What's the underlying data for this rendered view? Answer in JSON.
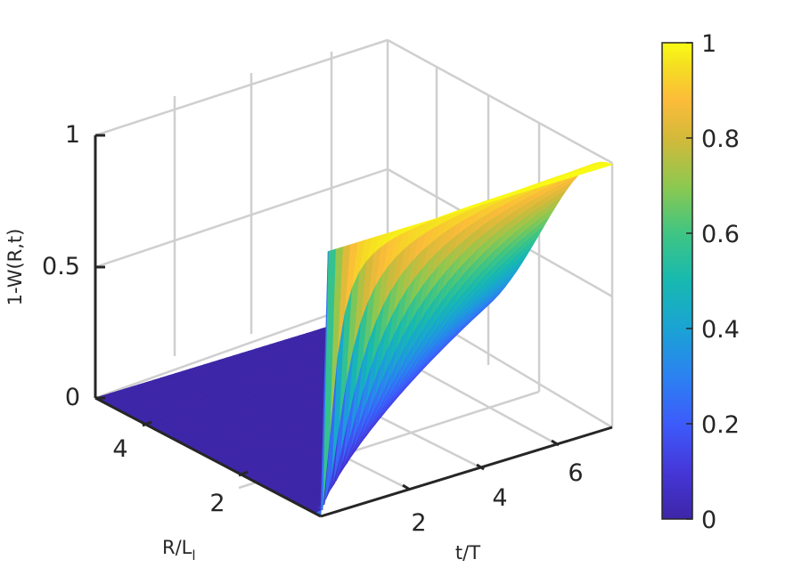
{
  "chart_data": {
    "type": "surface",
    "title": "",
    "xlabel": "t/T",
    "ylabel_main": "R/L",
    "ylabel_sub": "l",
    "zlabel": "1-W(R,t)",
    "x_range": [
      0,
      7
    ],
    "y_range": [
      0,
      5.5
    ],
    "z_range": [
      0,
      1
    ],
    "x_ticks": [
      "2",
      "4",
      "6"
    ],
    "y_ticks": [
      "2",
      "4"
    ],
    "z_ticks": [
      "0",
      "0.5",
      "1"
    ],
    "colorbar_ticks": [
      "0",
      "0.2",
      "0.4",
      "0.6",
      "0.8",
      "1"
    ],
    "colorbar_range": [
      0,
      1
    ],
    "colormap": "parula",
    "grid": true,
    "surface": {
      "description_formula": "z = exp(-((y/x) * 1.6)^2) style front; z≈0 at large R, z≈1 at large t",
      "front_edge_R0": [
        {
          "t": 0.0,
          "z": 0.0
        },
        {
          "t": 7.0,
          "z": 1.0
        }
      ]
    }
  }
}
